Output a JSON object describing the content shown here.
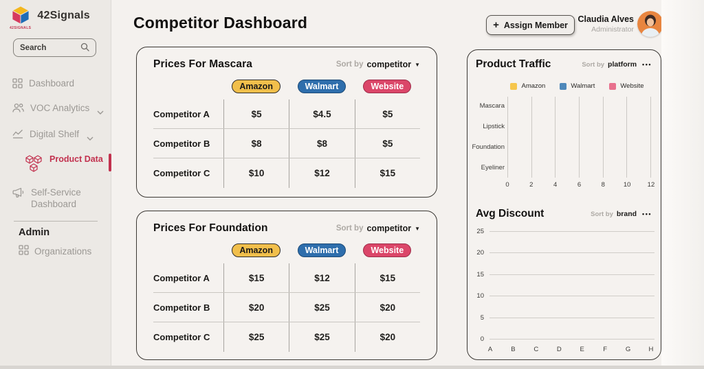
{
  "sidebar": {
    "brand": {
      "name": "42Signals",
      "caption": "42SIGNALS"
    },
    "search": {
      "label": "Search"
    },
    "items": [
      {
        "label": "Dashboard"
      },
      {
        "label": "VOC Analytics"
      },
      {
        "label": "Digital Shelf"
      },
      {
        "label": "Product Data",
        "active": true
      },
      {
        "label": "Self-Service Dashboard"
      }
    ],
    "admin_heading": "Admin",
    "admin_items": [
      {
        "label": "Organizations"
      }
    ]
  },
  "header": {
    "title": "Competitor Dashboard",
    "assign_button_label": "Assign Member",
    "user": {
      "name": "Claudia Alves",
      "role": "Administrator"
    }
  },
  "icons": {
    "plus": "+",
    "caret_down": "▼",
    "more_menu": "•••"
  },
  "colors": {
    "amazon_yellow": "#F1BF4B",
    "walmart_blue": "#2E6EAC",
    "website_pink": "#DB4669",
    "accent_red": "#C2314E",
    "avatar_orange": "#E8853F"
  },
  "price_cards": [
    {
      "title": "Prices For Mascara",
      "sort_label": "Sort by",
      "sort_value": "competitor",
      "columns": [
        "Amazon",
        "Walmart",
        "Website"
      ],
      "rows": [
        {
          "label": "Competitor A",
          "values": [
            "$5",
            "$4.5",
            "$5"
          ]
        },
        {
          "label": "Competitor B",
          "values": [
            "$8",
            "$8",
            "$5"
          ]
        },
        {
          "label": "Competitor C",
          "values": [
            "$10",
            "$12",
            "$15"
          ]
        }
      ]
    },
    {
      "title": "Prices For Foundation",
      "sort_label": "Sort by",
      "sort_value": "competitor",
      "columns": [
        "Amazon",
        "Walmart",
        "Website"
      ],
      "rows": [
        {
          "label": "Competitor A",
          "values": [
            "$15",
            "$12",
            "$15"
          ]
        },
        {
          "label": "Competitor B",
          "values": [
            "$20",
            "$25",
            "$20"
          ]
        },
        {
          "label": "Competitor C",
          "values": [
            "$25",
            "$25",
            "$20"
          ]
        }
      ]
    }
  ],
  "chart_data": [
    {
      "type": "bar",
      "orientation": "horizontal",
      "title": "Product Traffic",
      "sort_label": "Sort by",
      "sort_value": "platform",
      "legend": [
        {
          "name": "Amazon",
          "color": "#F6C64C"
        },
        {
          "name": "Walmart",
          "color": "#4E88BA"
        },
        {
          "name": "Website",
          "color": "#E8718D"
        }
      ],
      "categories": [
        "Mascara",
        "Lipstick",
        "Foundation",
        "Eyeliner"
      ],
      "x_ticks": [
        0,
        2,
        4,
        6,
        8,
        10,
        12
      ],
      "xlim": [
        0,
        12
      ],
      "grid": true,
      "legend_position": "top",
      "series": [],
      "note": "wireframe chart: axes, gridlines and legend only, no bars rendered"
    },
    {
      "type": "bar",
      "orientation": "vertical",
      "title": "Avg Discount",
      "sort_label": "Sort by",
      "sort_value": "brand",
      "categories": [
        "A",
        "B",
        "C",
        "D",
        "E",
        "F",
        "G",
        "H"
      ],
      "y_ticks": [
        25,
        20,
        15,
        10,
        5,
        0
      ],
      "ylim": [
        0,
        25
      ],
      "grid": true,
      "series": [],
      "note": "wireframe chart: axes and gridlines only, no bars rendered"
    }
  ]
}
